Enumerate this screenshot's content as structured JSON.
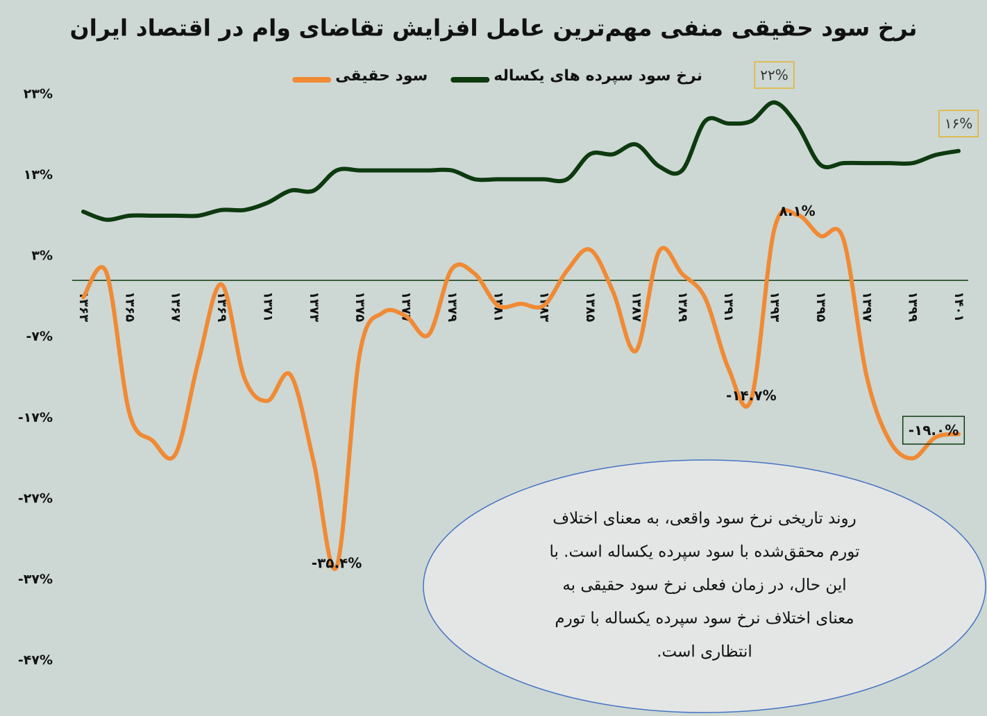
{
  "chart_data": {
    "type": "line",
    "title": "نرخ سود حقیقی منفی مهم‌ترین عامل افزایش تقاضای وام در اقتصاد ایران",
    "categories": [
      "۱۳۶۳",
      null,
      "۱۳۶۵",
      null,
      "۱۳۶۷",
      null,
      "۱۳۶۹",
      null,
      "۱۳۷۱",
      null,
      "۱۳۷۳",
      null,
      "۱۳۷۵",
      null,
      "۱۳۷۷",
      null,
      "۱۳۷۹",
      null,
      "۱۳۸۱",
      null,
      "۱۳۸۳",
      null,
      "۱۳۸۵",
      null,
      "۱۳۸۷",
      null,
      "۱۳۸۹",
      null,
      "۱۳۹۱",
      null,
      "۱۳۹۳",
      null,
      "۱۳۹۵",
      null,
      "۱۳۹۷",
      null,
      "۱۳۹۹",
      null,
      "۱۴۰۱"
    ],
    "series": [
      {
        "name": "نرخ سود سپرده های یکساله",
        "color": "#0d3a0f",
        "values": [
          8.5,
          7.5,
          8,
          8,
          8,
          8,
          8.7,
          8.7,
          9.6,
          11.1,
          11.1,
          13.6,
          13.6,
          13.6,
          13.6,
          13.6,
          13.6,
          12.5,
          12.5,
          12.5,
          12.5,
          12.5,
          15.6,
          15.6,
          16.8,
          14.1,
          13.6,
          19.7,
          19.4,
          19.7,
          22,
          19.2,
          14.3,
          14.5,
          14.5,
          14.5,
          14.5,
          15.5,
          16
        ],
        "value_labels": [
          null,
          null,
          null,
          null,
          null,
          null,
          null,
          null,
          null,
          null,
          null,
          null,
          null,
          null,
          null,
          null,
          null,
          null,
          null,
          null,
          null,
          null,
          null,
          null,
          null,
          null,
          null,
          null,
          null,
          null,
          "۲۲%",
          null,
          null,
          null,
          null,
          null,
          null,
          null,
          "۱۶%"
        ]
      },
      {
        "name": "سود حقیقی",
        "color": "#f08a35",
        "values": [
          -2.1,
          1,
          -16.4,
          -19.8,
          -21.5,
          -10,
          -0.5,
          -12.1,
          -14.9,
          -11.7,
          -22.4,
          -35.4,
          -9.1,
          -4,
          -4.4,
          -6.7,
          1.4,
          0.8,
          -3.1,
          -2.9,
          -3.1,
          1.2,
          3.8,
          -1.4,
          -8.7,
          3.6,
          0.8,
          -2.2,
          -10.8,
          -14.7,
          6.3,
          8.1,
          5.5,
          5.1,
          -11.7,
          -19.8,
          -22,
          -19.4,
          -19
        ],
        "value_labels": [
          null,
          null,
          null,
          null,
          null,
          null,
          null,
          null,
          null,
          null,
          null,
          "-۳۵.۴%",
          null,
          null,
          null,
          null,
          null,
          null,
          null,
          null,
          null,
          null,
          null,
          null,
          null,
          null,
          null,
          null,
          null,
          "-۱۴.۷%",
          null,
          "۸.۱%",
          null,
          null,
          null,
          null,
          null,
          null,
          "-۱۹.۰%"
        ]
      }
    ],
    "ylim": [
      -47,
      23
    ],
    "yticks": [
      {
        "value": 23,
        "label": "۲۳%"
      },
      {
        "value": 13,
        "label": "۱۳%"
      },
      {
        "value": 3,
        "label": "۳%"
      },
      {
        "value": -7,
        "label": "-۷%"
      },
      {
        "value": -17,
        "label": "-۱۷%"
      },
      {
        "value": -27,
        "label": "-۲۷%"
      },
      {
        "value": -37,
        "label": "-۳۷%"
      },
      {
        "value": -47,
        "label": "-۴۷%"
      }
    ],
    "grid": false,
    "legend": "top",
    "annotation": [
      "روند تاریخی نرخ سود واقعی، به معنای اختلاف",
      "تورم محقق‌شده با سود سپرده یکساله است. با",
      "این حال، در زمان فعلی نرخ سود حقیقی به",
      "معنای اختلاف نرخ سود سپرده یکساله با تورم",
      "انتظاری است."
    ]
  }
}
